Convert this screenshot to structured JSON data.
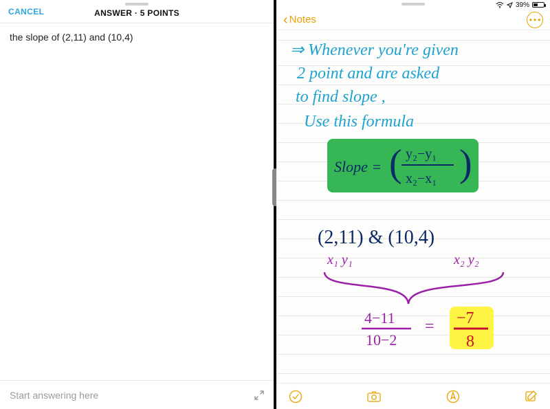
{
  "left": {
    "cancel": "CANCEL",
    "title": "ANSWER · 5 POINTS",
    "question": "the slope of (2,11) and (10,4)",
    "placeholder": "Start answering here"
  },
  "status": {
    "battery_pct": "39%",
    "battery_fill_pct": 39
  },
  "notes": {
    "back": "Notes"
  },
  "colors": {
    "accent_left": "#2aa7e0",
    "accent_notes": "#e9a200",
    "ink_blue": "#1ea2cf",
    "ink_green_hl": "#2bb24c",
    "ink_blue_dark": "#0b2a66",
    "ink_purple": "#9b1fa8",
    "ink_yellow_hl": "#fff23a",
    "ink_red": "#c4122f"
  },
  "handwriting": {
    "line1": "⇒ Whenever you're given",
    "line2": "2 point and are asked",
    "line3": "to find slope ,",
    "line4": "Use this formula",
    "formula_label": "Slope =",
    "formula_num": "y₂−y₁",
    "formula_den": "x₂−x₁",
    "points": "(2,11)  &  (10,4)",
    "labels_a": "x₁  y₁",
    "labels_b": "x₂  y₂",
    "calc_lhs_num": "4−11",
    "calc_lhs_den": "10−2",
    "eq": "=",
    "calc_rhs_num": "−7",
    "calc_rhs_den": "8"
  }
}
